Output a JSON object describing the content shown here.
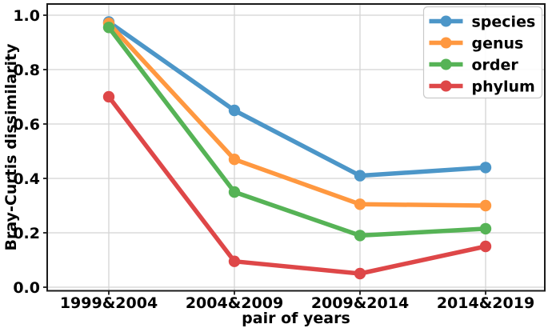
{
  "chart_data": {
    "type": "line",
    "title": "",
    "xlabel": "pair of years",
    "ylabel": "Bray-Curtis dissimilarity",
    "categories": [
      "1999&2004",
      "2004&2009",
      "2009&2014",
      "2014&2019"
    ],
    "series": [
      {
        "name": "species",
        "color": "#4C96C8",
        "values": [
          0.975,
          0.65,
          0.41,
          0.44
        ]
      },
      {
        "name": "genus",
        "color": "#FF9840",
        "values": [
          0.97,
          0.47,
          0.305,
          0.3
        ]
      },
      {
        "name": "order",
        "color": "#56B356",
        "values": [
          0.955,
          0.35,
          0.19,
          0.215
        ]
      },
      {
        "name": "phylum",
        "color": "#DE4748",
        "values": [
          0.7,
          0.095,
          0.05,
          0.15
        ]
      }
    ],
    "ylim": [
      0.0,
      1.04
    ],
    "yticks": [
      0.0,
      0.2,
      0.4,
      0.6,
      0.8,
      1.0
    ],
    "ytick_labels": [
      "0.0",
      "0.2",
      "0.4",
      "0.6",
      "0.8",
      "1.0"
    ],
    "grid": true,
    "legend_position": "upper right",
    "colors": {
      "grid": "#d4d4d4",
      "axis": "#1a1a1a",
      "legend_border": "#c9c9c9",
      "legend_background": "#ffffff",
      "background": "#ffffff"
    }
  }
}
